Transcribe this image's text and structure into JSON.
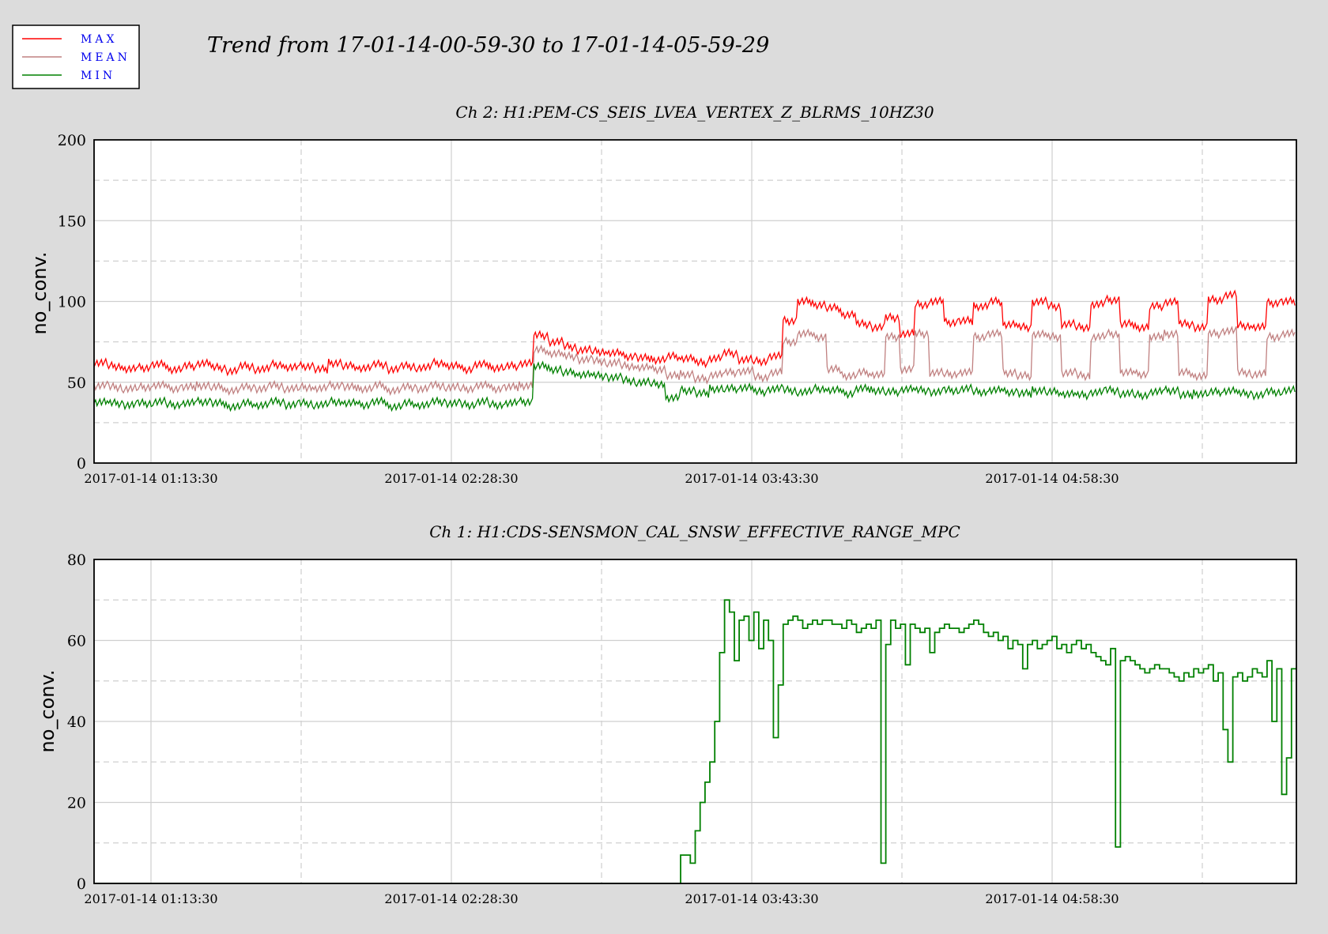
{
  "figure_title": "Trend from 17-01-14-00-59-30 to 17-01-14-05-59-29",
  "legend": [
    {
      "label": "MAX",
      "color": "#ff0000"
    },
    {
      "label": "MEAN",
      "color": "#c08080"
    },
    {
      "label": "MIN",
      "color": "#008000"
    }
  ],
  "colors": {
    "background": "#dcdcdc",
    "plot_bg": "#ffffff",
    "grid": "#cccccc"
  },
  "chart_data": [
    {
      "type": "line",
      "title": "Ch 2: H1:PEM-CS_SEIS_LVEA_VERTEX_Z_BLRMS_10HZ30",
      "ylabel": "no_conv.",
      "xlabel": "",
      "ylim": [
        0,
        200
      ],
      "yticks": [
        "0",
        "50",
        "100",
        "150",
        "200"
      ],
      "xticks": [
        "2017-01-14 01:13:30",
        "2017-01-14 02:28:30",
        "2017-01-14 03:43:30",
        "2017-01-14 04:58:30"
      ],
      "grid": true,
      "series": [
        {
          "name": "MAX",
          "color": "#ff0000",
          "values": [
            62,
            60,
            58,
            59,
            61,
            58,
            60,
            62,
            59,
            57,
            60,
            58,
            61,
            59,
            60,
            58,
            62,
            60,
            59,
            61,
            58,
            60,
            59,
            62,
            60,
            58,
            61,
            59,
            60,
            62,
            79,
            75,
            72,
            70,
            69,
            68,
            66,
            65,
            64,
            66,
            65,
            62,
            65,
            68,
            64,
            63,
            66,
            88,
            100,
            98,
            96,
            92,
            86,
            84,
            90,
            80,
            98,
            100,
            87,
            88,
            97,
            100,
            86,
            84,
            100,
            97,
            86,
            84,
            98,
            101,
            86,
            84,
            97,
            100,
            86,
            84,
            101,
            104,
            85,
            84,
            99,
            100
          ]
        },
        {
          "name": "MEAN",
          "color": "#c08080",
          "values": [
            48,
            47,
            46,
            47,
            48,
            46,
            47,
            48,
            47,
            45,
            47,
            46,
            48,
            46,
            47,
            46,
            48,
            47,
            46,
            48,
            45,
            47,
            46,
            48,
            47,
            46,
            48,
            46,
            47,
            48,
            70,
            68,
            66,
            64,
            63,
            62,
            60,
            59,
            58,
            54,
            55,
            52,
            55,
            56,
            57,
            53,
            56,
            75,
            80,
            78,
            58,
            54,
            56,
            55,
            78,
            58,
            80,
            56,
            55,
            56,
            78,
            80,
            56,
            54,
            80,
            78,
            56,
            54,
            78,
            80,
            56,
            55,
            78,
            80,
            56,
            54,
            80,
            82,
            56,
            55,
            78,
            80
          ]
        },
        {
          "name": "MIN",
          "color": "#008000",
          "values": [
            38,
            37,
            36,
            37,
            38,
            36,
            37,
            38,
            37,
            35,
            37,
            36,
            38,
            36,
            37,
            36,
            38,
            37,
            36,
            38,
            35,
            37,
            36,
            38,
            37,
            36,
            38,
            36,
            37,
            38,
            60,
            58,
            56,
            55,
            54,
            53,
            51,
            50,
            49,
            40,
            45,
            43,
            46,
            46,
            47,
            44,
            46,
            45,
            44,
            46,
            45,
            43,
            46,
            45,
            44,
            46,
            45,
            44,
            45,
            46,
            44,
            45,
            44,
            43,
            45,
            44,
            43,
            42,
            44,
            45,
            43,
            42,
            44,
            45,
            42,
            43,
            44,
            45,
            43,
            42,
            44,
            45
          ]
        }
      ]
    },
    {
      "type": "line",
      "title": "Ch 1: H1:CDS-SENSMON_CAL_SNSW_EFFECTIVE_RANGE_MPC",
      "ylabel": "no_conv.",
      "xlabel": "",
      "ylim": [
        0,
        80
      ],
      "yticks": [
        "0",
        "20",
        "40",
        "60",
        "80"
      ],
      "xticks": [
        "2017-01-14 01:13:30",
        "2017-01-14 02:28:30",
        "2017-01-14 03:43:30",
        "2017-01-14 04:58:30"
      ],
      "grid": true,
      "series": [
        {
          "name": "MIN",
          "color": "#008000",
          "values": [
            0,
            0,
            0,
            0,
            0,
            0,
            0,
            0,
            0,
            0,
            0,
            0,
            0,
            0,
            0,
            0,
            0,
            0,
            0,
            0,
            0,
            0,
            0,
            0,
            0,
            0,
            0,
            0,
            0,
            0,
            0,
            0,
            0,
            0,
            0,
            0,
            0,
            0,
            0,
            0,
            0,
            0,
            0,
            0,
            0,
            0,
            0,
            0,
            0,
            0,
            0,
            0,
            0,
            0,
            0,
            0,
            0,
            0,
            0,
            0,
            0,
            0,
            0,
            0,
            0,
            0,
            0,
            0,
            0,
            0,
            0,
            0,
            0,
            0,
            0,
            0,
            0,
            0,
            0,
            0,
            0,
            0,
            0,
            0,
            0,
            0,
            0,
            0,
            0,
            0,
            0,
            0,
            0,
            0,
            0,
            0,
            0,
            0,
            0,
            0,
            0,
            0,
            0,
            0,
            0,
            0,
            0,
            0,
            0,
            0,
            0,
            0,
            0,
            0,
            0,
            0,
            0,
            0,
            0,
            0,
            7,
            7,
            5,
            13,
            20,
            25,
            30,
            40,
            57,
            70,
            67,
            55,
            65,
            66,
            60,
            67,
            58,
            65,
            60,
            36,
            49,
            64,
            65,
            66,
            65,
            63,
            64,
            65,
            64,
            65,
            65,
            64,
            64,
            63,
            65,
            64,
            62,
            63,
            64,
            63,
            65,
            5,
            59,
            65,
            63,
            64,
            54,
            64,
            63,
            62,
            63,
            57,
            62,
            63,
            64,
            63,
            63,
            62,
            63,
            64,
            65,
            64,
            62,
            61,
            62,
            60,
            61,
            58,
            60,
            59,
            53,
            59,
            60,
            58,
            59,
            60,
            61,
            58,
            59,
            57,
            59,
            60,
            58,
            59,
            57,
            56,
            55,
            54,
            58,
            9,
            55,
            56,
            55,
            54,
            53,
            52,
            53,
            54,
            53,
            53,
            52,
            51,
            50,
            52,
            51,
            53,
            52,
            53,
            54,
            50,
            52,
            38,
            30,
            51,
            52,
            50,
            51,
            53,
            52,
            51,
            55,
            40,
            53,
            22,
            31,
            53
          ]
        }
      ]
    }
  ]
}
